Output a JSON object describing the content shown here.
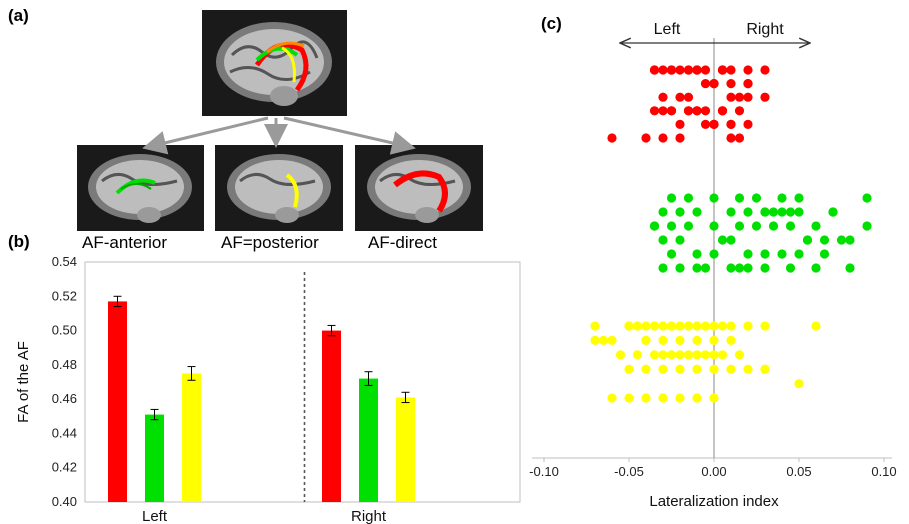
{
  "panels": {
    "a": {
      "label": "(a)",
      "captions": [
        "AF-anterior",
        "AF=posterior",
        "AF-direct"
      ]
    },
    "b": {
      "label": "(b)"
    },
    "c": {
      "label": "(c)"
    }
  },
  "colors": {
    "anterior": "#00e000",
    "posterior": "#ffff00",
    "direct": "#ff0000"
  },
  "chart_data": [
    {
      "type": "bar",
      "title": "",
      "ylabel": "FA of the AF",
      "xlabel": "",
      "categories": [
        "Left",
        "Right"
      ],
      "ylim": [
        0.4,
        0.54
      ],
      "yticks": [
        "0.40",
        "0.42",
        "0.44",
        "0.46",
        "0.48",
        "0.50",
        "0.52",
        "0.54"
      ],
      "series": [
        {
          "color": "#ff0000",
          "values": [
            0.517,
            0.5
          ],
          "errors": [
            0.003,
            0.003
          ]
        },
        {
          "color": "#00e000",
          "values": [
            0.451,
            0.472
          ],
          "errors": [
            0.003,
            0.004
          ]
        },
        {
          "color": "#ffff00",
          "values": [
            0.475,
            0.461
          ],
          "errors": [
            0.004,
            0.003
          ]
        }
      ]
    },
    {
      "type": "scatter",
      "title": "",
      "xlabel": "Lateralization index",
      "direction_labels": {
        "left": "Left",
        "right": "Right"
      },
      "xlim": [
        -0.1,
        0.1
      ],
      "xticks": [
        "-0.10",
        "-0.05",
        "0.00",
        "0.05",
        "0.10"
      ],
      "series": [
        {
          "color": "#ff0000",
          "points": [
            -0.035,
            -0.03,
            -0.025,
            -0.02,
            -0.015,
            -0.01,
            -0.005,
            0.005,
            0.01,
            0.02,
            -0.035,
            -0.03,
            -0.025,
            -0.015,
            -0.01,
            -0.005,
            0.0,
            0.005,
            0.015,
            0.02,
            -0.035,
            -0.025,
            -0.02,
            -0.015,
            -0.01,
            0.0,
            0.005,
            0.01,
            0.015,
            0.02,
            -0.025,
            -0.015,
            -0.01,
            -0.005,
            0.0,
            0.005,
            0.01,
            -0.03,
            -0.025,
            -0.02,
            -0.01,
            -0.005,
            0.0,
            0.005,
            0.01,
            0.015,
            -0.06,
            -0.04,
            -0.03,
            -0.02,
            -0.01,
            0.0,
            0.005,
            0.01,
            0.02,
            0.03,
            -0.015,
            0.0,
            0.01,
            0.02,
            0.03
          ]
        },
        {
          "color": "#00e000",
          "points": [
            -0.03,
            -0.02,
            -0.01,
            0.01,
            0.02,
            0.03,
            0.04,
            0.05,
            0.07,
            0.09,
            -0.035,
            -0.025,
            -0.015,
            0.0,
            0.015,
            0.025,
            0.035,
            0.045,
            0.055,
            0.075,
            -0.03,
            -0.02,
            -0.01,
            0.005,
            0.01,
            0.02,
            0.03,
            0.04,
            0.05,
            0.065,
            0.09,
            -0.025,
            -0.015,
            0.0,
            0.015,
            0.025,
            0.035,
            0.045,
            0.06,
            0.07,
            0.08,
            -0.03,
            -0.02,
            -0.005,
            0.01,
            0.02,
            0.03,
            0.04,
            0.05,
            0.06,
            -0.035,
            -0.025,
            -0.01,
            0.0,
            0.015,
            0.03,
            0.045,
            0.055,
            0.065,
            0.08
          ]
        },
        {
          "color": "#ffff00",
          "points": [
            -0.05,
            -0.04,
            -0.03,
            -0.02,
            -0.01,
            0.0,
            0.01,
            0.06,
            -0.07,
            -0.06,
            -0.05,
            -0.04,
            -0.03,
            -0.02,
            -0.01,
            0.0,
            0.01,
            -0.065,
            -0.055,
            -0.045,
            -0.035,
            -0.025,
            -0.015,
            -0.005,
            0.005,
            0.015,
            -0.05,
            -0.04,
            -0.03,
            -0.02,
            -0.01,
            0.0,
            0.01,
            0.02,
            0.03,
            -0.06,
            -0.045,
            -0.035,
            -0.025,
            -0.015,
            -0.005,
            0.005,
            0.02,
            0.03,
            0.05,
            -0.07,
            -0.05,
            -0.04,
            -0.03,
            -0.02,
            -0.01,
            0.0,
            0.03,
            -0.04,
            -0.03,
            -0.02,
            -0.01,
            0.0
          ]
        }
      ]
    }
  ]
}
